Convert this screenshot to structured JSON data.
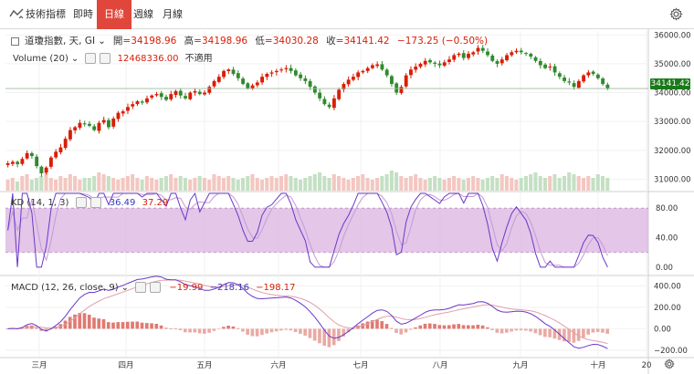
{
  "toolbar": {
    "indicators_label": "技術指標",
    "tabs": [
      {
        "label": "即時",
        "active": false
      },
      {
        "label": "日線",
        "active": true
      },
      {
        "label": "週線",
        "active": false
      },
      {
        "label": "月線",
        "active": false
      }
    ]
  },
  "main": {
    "symbol": "道瓊指數, 天, GI",
    "open_label": "開",
    "open": "=34198.96",
    "high_label": "高",
    "high": "=34198.96",
    "low_label": "低",
    "low": "=34030.28",
    "close_label": "收",
    "close": "=34141.42",
    "change": "−173.25 (−0.50%)",
    "last_price_tag": "34141.42",
    "volume_label": "Volume (20)",
    "volume_value": "12468336.00",
    "volume_na": "不適用"
  },
  "kd": {
    "label": "KD (14, 1, 3)",
    "k_value": "36.49",
    "d_value": "37.29"
  },
  "macd": {
    "label": "MACD (12, 26, close, 9)",
    "v1": "−19.99",
    "v2": "−218.16",
    "v3": "−198.17"
  },
  "x_axis": {
    "ticks": [
      "三月",
      "四月",
      "五月",
      "六月",
      "七月",
      "八月",
      "九月",
      "十月",
      "20"
    ]
  },
  "colors": {
    "up": "#d81e06",
    "down": "#2e8b2e",
    "kd_band": "#d9b3e0",
    "k_line": "#6a38c9",
    "d_line": "#c59ad4",
    "macd_line": "#6a38c9",
    "signal_line": "#e0a0a8"
  },
  "chart_data": [
    {
      "type": "candlestick",
      "name": "道瓊指數",
      "yticks": [
        31000,
        32000,
        33000,
        34000,
        35000,
        36000
      ],
      "ylim": [
        30600,
        36200
      ],
      "last": 34141.42,
      "close_series": [
        31550,
        31600,
        31520,
        31700,
        31900,
        31800,
        31450,
        31200,
        31400,
        31750,
        31950,
        32100,
        32400,
        32700,
        32800,
        32950,
        32900,
        32850,
        32700,
        32950,
        33050,
        32800,
        33100,
        33300,
        33350,
        33500,
        33600,
        33700,
        33650,
        33800,
        33900,
        33950,
        33850,
        33750,
        33950,
        34050,
        33900,
        33800,
        34000,
        34050,
        33950,
        34000,
        34200,
        34400,
        34550,
        34750,
        34800,
        34650,
        34500,
        34300,
        34150,
        34250,
        34350,
        34550,
        34650,
        34700,
        34750,
        34800,
        34850,
        34750,
        34600,
        34500,
        34400,
        34200,
        34000,
        33800,
        33600,
        33500,
        33800,
        34100,
        34300,
        34450,
        34550,
        34700,
        34750,
        34850,
        34950,
        34980,
        34800,
        34600,
        34300,
        34000,
        34200,
        34600,
        34800,
        34900,
        35000,
        35100,
        35050,
        35000,
        34950,
        35050,
        35150,
        35300,
        35350,
        35200,
        35350,
        35400,
        35550,
        35450,
        35300,
        35100,
        35000,
        35150,
        35300,
        35400,
        35450,
        35400,
        35350,
        35250,
        35100,
        34950,
        34850,
        34900,
        34700,
        34550,
        34400,
        34350,
        34200,
        34400,
        34600,
        34700,
        34650,
        34500,
        34300,
        34150
      ]
    },
    {
      "type": "bar",
      "name": "Volume",
      "values": [
        6,
        7,
        5,
        8,
        9,
        6,
        7,
        8,
        10,
        7,
        6,
        8,
        7,
        9,
        8,
        6,
        7,
        7,
        8,
        10,
        9,
        8,
        7,
        6,
        7,
        8,
        9,
        7,
        6,
        8,
        7,
        6,
        7,
        8,
        9,
        7,
        8,
        7,
        6,
        7,
        8,
        7,
        6,
        9,
        8,
        7,
        8,
        7,
        6,
        7,
        8,
        9,
        7,
        6,
        7,
        8,
        7,
        8,
        9,
        8,
        7,
        6,
        7,
        8,
        9,
        10,
        8,
        7,
        9,
        8,
        7,
        6,
        7,
        8,
        9,
        7,
        6,
        7,
        8,
        9,
        11,
        10,
        8,
        7,
        8,
        9,
        7,
        6,
        7,
        8,
        7,
        6,
        7,
        8,
        7,
        6,
        7,
        8,
        7,
        6,
        7,
        8,
        7,
        9,
        8,
        7,
        6,
        7,
        8,
        9,
        10,
        8,
        7,
        8,
        9,
        7,
        8,
        10,
        9,
        8,
        7,
        8,
        7,
        9,
        8,
        7
      ]
    },
    {
      "type": "line",
      "name": "KD",
      "yticks": [
        0,
        40,
        80
      ],
      "ylim": [
        -10,
        100
      ],
      "band": [
        20,
        80
      ],
      "last_k": 36.49,
      "last_d": 37.29
    },
    {
      "type": "line",
      "name": "MACD",
      "yticks": [
        -200,
        0,
        200,
        400
      ],
      "ylim": [
        -260,
        480
      ],
      "last_macd": -218.16,
      "last_signal": -198.17,
      "last_hist": -19.99
    }
  ]
}
